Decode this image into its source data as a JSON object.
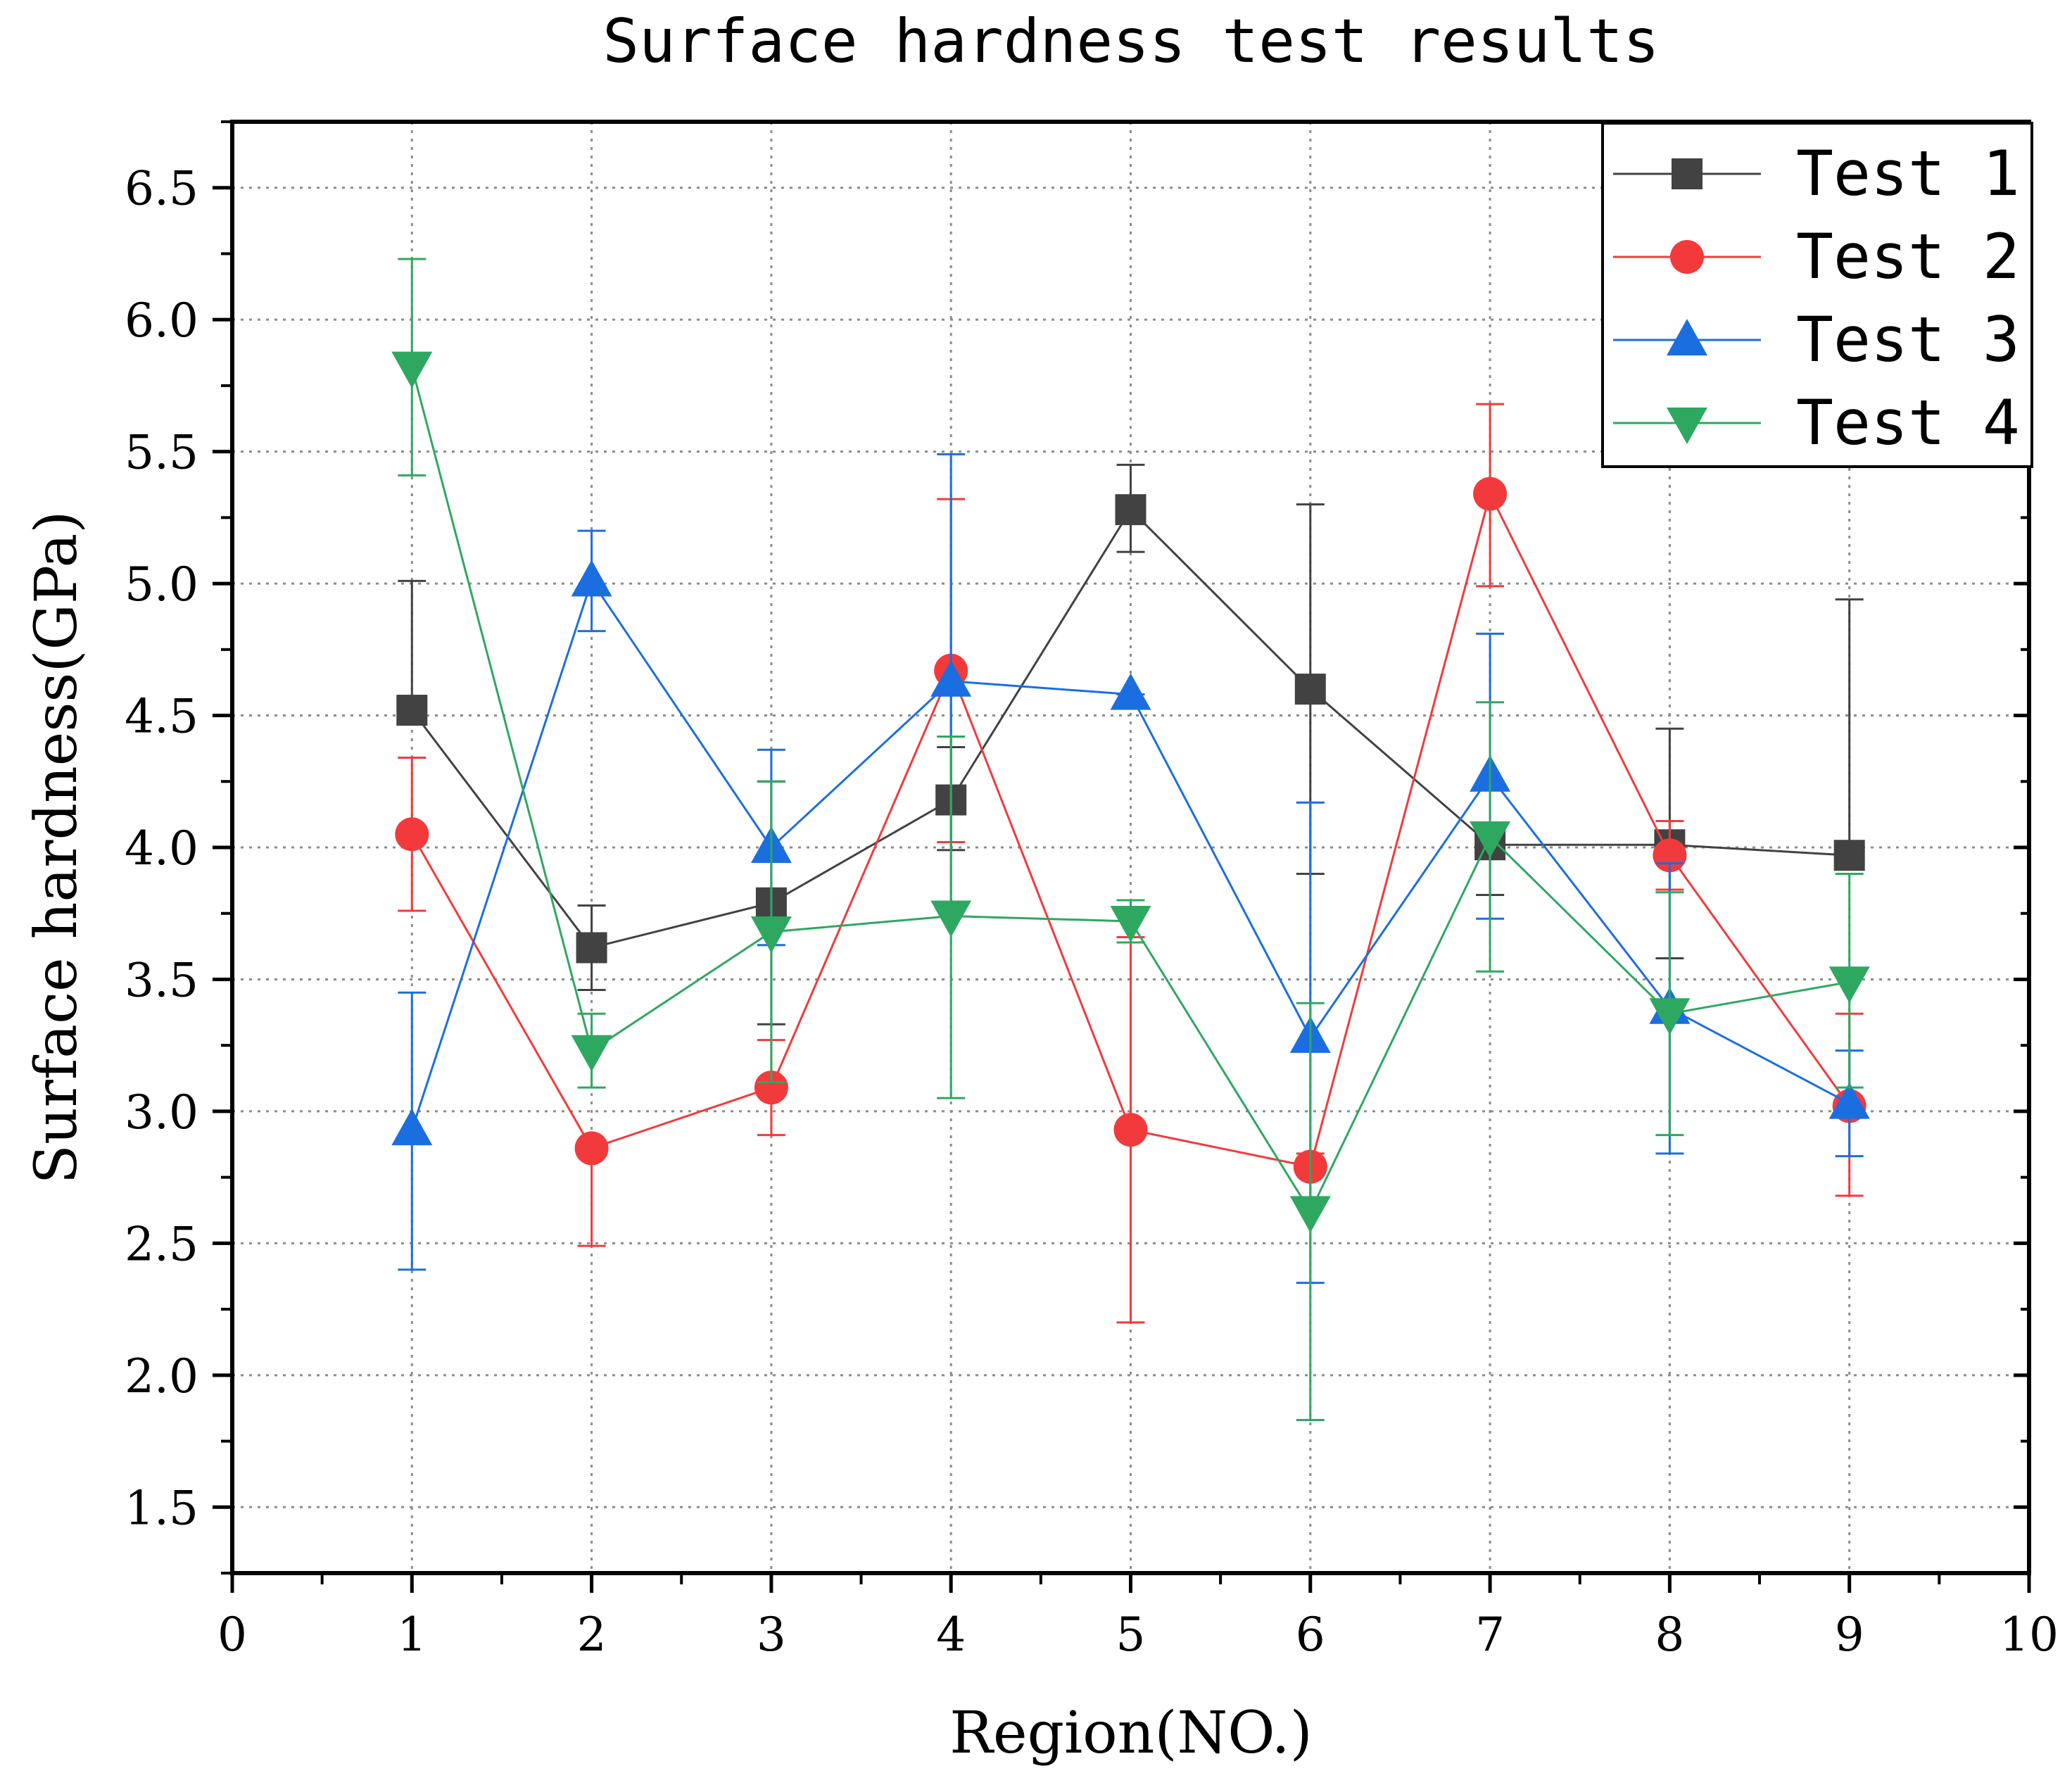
{
  "chart_data": {
    "type": "line",
    "title": "Surface hardness test results",
    "xlabel": "Region(NO.)",
    "ylabel": "Surface hardness(GPa)",
    "xlim": [
      0,
      10
    ],
    "ylim": [
      1.25,
      6.75
    ],
    "xticks": [
      "0",
      "1",
      "2",
      "3",
      "4",
      "5",
      "6",
      "7",
      "8",
      "9",
      "10"
    ],
    "yticks": [
      "1.5",
      "2.0",
      "2.5",
      "3.0",
      "3.5",
      "4.0",
      "4.5",
      "5.0",
      "5.5",
      "6.0",
      "6.5"
    ],
    "grid": true,
    "legend_position": "top-right",
    "x": [
      1,
      2,
      3,
      4,
      5,
      6,
      7,
      8,
      9
    ],
    "series": [
      {
        "name": "Test 1",
        "color": "#424242",
        "marker": "square",
        "values": [
          4.52,
          3.62,
          3.79,
          4.18,
          5.28,
          4.6,
          4.01,
          4.01,
          3.97
        ],
        "err_low": [
          4.52,
          3.46,
          3.33,
          3.99,
          5.12,
          3.9,
          3.82,
          3.58,
          3.97
        ],
        "err_high": [
          5.01,
          3.78,
          4.25,
          4.38,
          5.45,
          5.3,
          4.01,
          4.45,
          4.94
        ]
      },
      {
        "name": "Test 2",
        "color": "#f23a3c",
        "marker": "circle",
        "values": [
          4.05,
          2.86,
          3.09,
          4.67,
          2.93,
          2.79,
          5.34,
          3.97,
          3.02
        ],
        "err_low": [
          3.76,
          2.49,
          2.91,
          4.02,
          2.2,
          2.79,
          4.99,
          3.84,
          2.68
        ],
        "err_high": [
          4.34,
          2.86,
          3.27,
          5.32,
          3.66,
          2.84,
          5.68,
          4.1,
          3.37
        ]
      },
      {
        "name": "Test 3",
        "color": "#1b6ee0",
        "marker": "triangle-up",
        "values": [
          2.93,
          5.01,
          4.0,
          4.63,
          4.58,
          3.28,
          4.27,
          3.39,
          3.03
        ],
        "err_low": [
          2.4,
          4.82,
          3.63,
          3.76,
          4.58,
          2.35,
          3.73,
          2.84,
          2.83
        ],
        "err_high": [
          3.45,
          5.2,
          4.37,
          5.49,
          4.58,
          4.17,
          4.81,
          3.94,
          3.23
        ]
      },
      {
        "name": "Test 4",
        "color": "#2ea860",
        "marker": "triangle-down",
        "values": [
          5.82,
          3.23,
          3.68,
          3.74,
          3.72,
          2.62,
          4.04,
          3.37,
          3.49
        ],
        "err_low": [
          5.41,
          3.09,
          3.11,
          3.05,
          3.64,
          1.83,
          3.53,
          2.91,
          3.09
        ],
        "err_high": [
          6.23,
          3.37,
          4.25,
          4.42,
          3.8,
          3.41,
          4.55,
          3.83,
          3.9
        ]
      }
    ]
  }
}
